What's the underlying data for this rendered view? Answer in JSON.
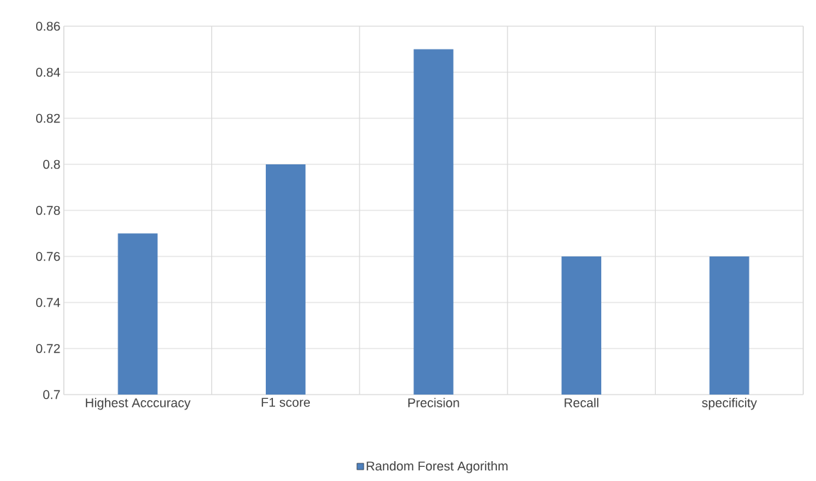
{
  "chart_data": {
    "type": "bar",
    "categories": [
      "Highest Acccuracy",
      "F1 score",
      "Precision",
      "Recall",
      "specificity"
    ],
    "series": [
      {
        "name": "Random Forest Agorithm",
        "color": "#4f81bd",
        "values": [
          0.77,
          0.8,
          0.85,
          0.76,
          0.76
        ]
      }
    ],
    "ylim": [
      0.7,
      0.86
    ],
    "yticks": [
      0.7,
      0.72,
      0.74,
      0.76,
      0.78,
      0.8,
      0.82,
      0.84,
      0.86
    ],
    "grid": true,
    "legend": "bottom"
  }
}
